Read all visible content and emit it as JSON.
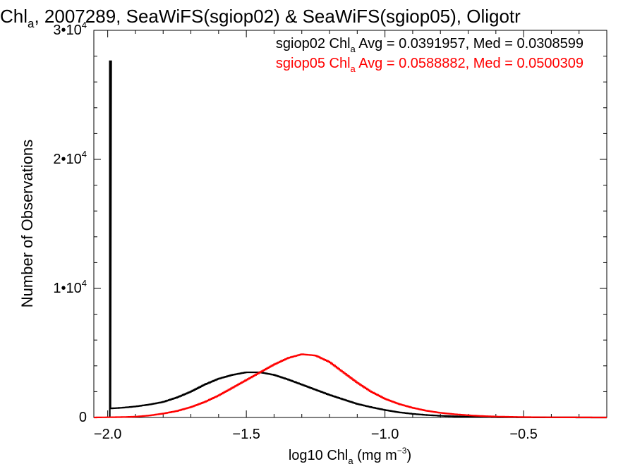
{
  "chart_data": {
    "type": "histogram",
    "title": {
      "prefix": "Chl",
      "prefix_sub": "a",
      "rest": ", 2007289, SeaWiFS(sgiop02) & SeaWiFS(sgiop05), Oligotr"
    },
    "xlabel": {
      "main": "log10 Chl",
      "sub": "a",
      "after": " (mg m",
      "sup": "−3",
      "close": ")"
    },
    "ylabel": "Number of Observations",
    "xlim": [
      -2.05,
      -0.2
    ],
    "ylim": [
      0,
      30000
    ],
    "x_ticks": [
      {
        "value": -2.0,
        "label": "−2.0"
      },
      {
        "value": -1.5,
        "label": "−1.5"
      },
      {
        "value": -1.0,
        "label": "−1.0"
      },
      {
        "value": -0.5,
        "label": "−0.5"
      }
    ],
    "y_ticks": [
      {
        "value": 0,
        "base": "0",
        "exp": ""
      },
      {
        "value": 10000,
        "base": "1•10",
        "exp": "4"
      },
      {
        "value": 20000,
        "base": "2•10",
        "exp": "4"
      },
      {
        "value": 30000,
        "base": "3•10",
        "exp": "4"
      }
    ],
    "legend_placement": "top-right",
    "series": [
      {
        "name": "sgiop02",
        "color": "#000000",
        "legend": {
          "pre": "sgiop02 Chl",
          "sub": "a",
          "post": " Avg = 0.0391957, Med = 0.0308599"
        },
        "spike": {
          "x": -1.99,
          "value": 27600
        },
        "points": [
          [
            -1.99,
            700
          ],
          [
            -1.95,
            750
          ],
          [
            -1.9,
            850
          ],
          [
            -1.85,
            1000
          ],
          [
            -1.8,
            1200
          ],
          [
            -1.75,
            1550
          ],
          [
            -1.7,
            2000
          ],
          [
            -1.65,
            2550
          ],
          [
            -1.6,
            3000
          ],
          [
            -1.55,
            3300
          ],
          [
            -1.5,
            3500
          ],
          [
            -1.45,
            3500
          ],
          [
            -1.4,
            3300
          ],
          [
            -1.35,
            2950
          ],
          [
            -1.3,
            2550
          ],
          [
            -1.25,
            2150
          ],
          [
            -1.2,
            1750
          ],
          [
            -1.15,
            1400
          ],
          [
            -1.1,
            1050
          ],
          [
            -1.05,
            800
          ],
          [
            -1.0,
            580
          ],
          [
            -0.95,
            400
          ],
          [
            -0.9,
            280
          ],
          [
            -0.85,
            190
          ],
          [
            -0.8,
            130
          ],
          [
            -0.75,
            90
          ],
          [
            -0.7,
            60
          ],
          [
            -0.65,
            40
          ],
          [
            -0.6,
            25
          ],
          [
            -0.5,
            10
          ],
          [
            -0.4,
            5
          ],
          [
            -0.2,
            0
          ]
        ]
      },
      {
        "name": "sgiop05",
        "color": "#ff0000",
        "legend": {
          "pre": "sgiop05 Chl",
          "sub": "a",
          "post": " Avg = 0.0588882, Med = 0.0500309"
        },
        "points": [
          [
            -2.05,
            0
          ],
          [
            -1.95,
            30
          ],
          [
            -1.9,
            60
          ],
          [
            -1.85,
            150
          ],
          [
            -1.8,
            300
          ],
          [
            -1.75,
            500
          ],
          [
            -1.7,
            800
          ],
          [
            -1.65,
            1200
          ],
          [
            -1.6,
            1700
          ],
          [
            -1.55,
            2300
          ],
          [
            -1.5,
            2900
          ],
          [
            -1.45,
            3500
          ],
          [
            -1.4,
            4100
          ],
          [
            -1.35,
            4600
          ],
          [
            -1.3,
            4900
          ],
          [
            -1.25,
            4800
          ],
          [
            -1.2,
            4300
          ],
          [
            -1.15,
            3500
          ],
          [
            -1.1,
            2700
          ],
          [
            -1.05,
            2000
          ],
          [
            -1.0,
            1450
          ],
          [
            -0.95,
            1050
          ],
          [
            -0.9,
            750
          ],
          [
            -0.85,
            520
          ],
          [
            -0.8,
            360
          ],
          [
            -0.75,
            250
          ],
          [
            -0.7,
            170
          ],
          [
            -0.65,
            110
          ],
          [
            -0.6,
            70
          ],
          [
            -0.5,
            30
          ],
          [
            -0.4,
            10
          ],
          [
            -0.2,
            0
          ]
        ]
      }
    ]
  }
}
